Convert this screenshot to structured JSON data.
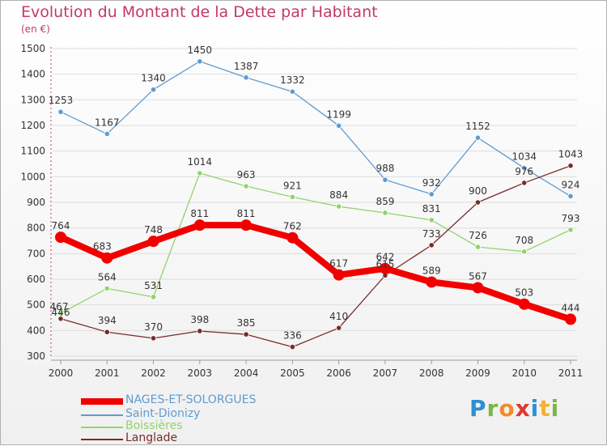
{
  "header": {
    "title": "Evolution du Montant de la Dette par Habitant",
    "unit": "(en €)"
  },
  "brand": {
    "letters": [
      "P",
      "r",
      "o",
      "x",
      "i",
      "t",
      "i"
    ],
    "letter_colors": [
      "#2f8fd4",
      "#7ab648",
      "#f28c28",
      "#e0382d",
      "#2f8fd4",
      "#f2b134",
      "#7ab648"
    ]
  },
  "chart_data": {
    "type": "line",
    "x": [
      2000,
      2001,
      2002,
      2003,
      2004,
      2005,
      2006,
      2007,
      2008,
      2009,
      2010,
      2011
    ],
    "ylim": [
      300,
      1500
    ],
    "yticks": [
      300,
      400,
      500,
      600,
      700,
      800,
      900,
      1000,
      1100,
      1200,
      1300,
      1400,
      1500
    ],
    "grid": "horizontal",
    "legend_position": "bottom-left",
    "series": [
      {
        "name": "NAGES-ET-SOLORGUES",
        "color": "#f20000",
        "values": [
          764,
          683,
          748,
          811,
          811,
          762,
          617,
          642,
          589,
          567,
          503,
          444
        ]
      },
      {
        "name": "Saint-Dionizy",
        "color": "#5f9bd1",
        "values": [
          1253,
          1167,
          1340,
          1450,
          1387,
          1332,
          1199,
          988,
          932,
          1152,
          1034,
          924
        ]
      },
      {
        "name": "Boissières",
        "color": "#92d36b",
        "values": [
          467,
          564,
          531,
          1014,
          963,
          921,
          884,
          859,
          831,
          726,
          708,
          793
        ]
      },
      {
        "name": "Langlade",
        "color": "#7a2a2a",
        "values": [
          446,
          394,
          370,
          398,
          385,
          336,
          410,
          615,
          733,
          900,
          976,
          1043
        ]
      }
    ]
  }
}
